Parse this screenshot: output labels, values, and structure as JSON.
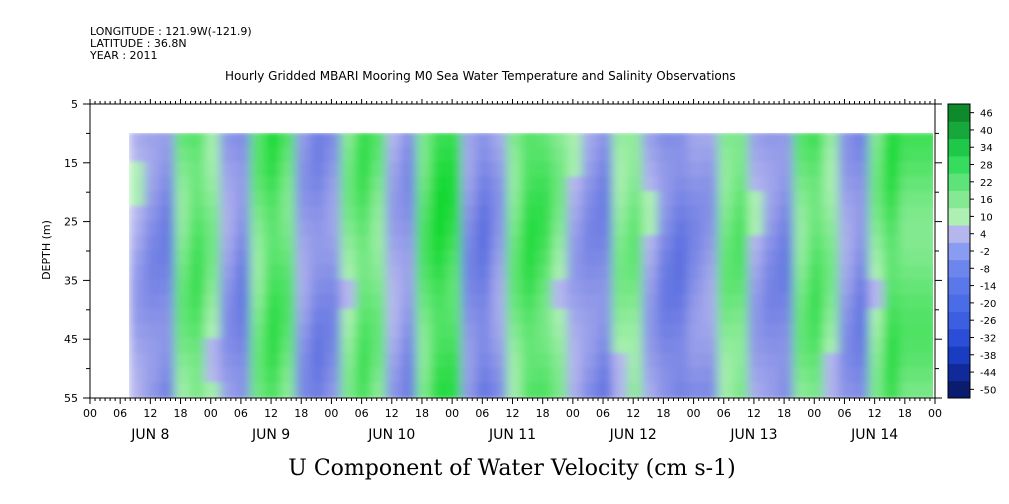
{
  "header": {
    "longitude": "LONGITUDE : 121.9W(-121.9)",
    "latitude": "LATITUDE : 36.8N",
    "year": "YEAR : 2011",
    "title": "Hourly Gridded MBARI Mooring M0 Sea Water Temperature and Salinity Observations"
  },
  "colors": {
    "background_missing": "#ffffff",
    "zero_pos": "#aef0b4",
    "zero_neg": "#b6b6ee",
    "strong_pos": "#0ed82e",
    "strong_neg": "#5a6ee0"
  },
  "chart_data": {
    "type": "heatmap",
    "title": "Hourly Gridded MBARI Mooring M0 Sea Water Temperature and Salinity Observations",
    "xlabel": "U Component of Water Velocity (cm s-1)",
    "ylabel": "DEPTH (m)",
    "ylim": [
      55,
      5
    ],
    "y_ticks": [
      5,
      15,
      25,
      35,
      45,
      55
    ],
    "hour_ticks": [
      "00",
      "06",
      "12",
      "18",
      "00",
      "06",
      "12",
      "18",
      "00",
      "06",
      "12",
      "18",
      "00",
      "06",
      "12",
      "18",
      "00",
      "06",
      "12",
      "18",
      "00",
      "06",
      "12",
      "18",
      "00",
      "06",
      "12",
      "18",
      "00"
    ],
    "day_labels": [
      "JUN  8",
      "JUN  9",
      "JUN 10",
      "JUN 11",
      "JUN 12",
      "JUN 13",
      "JUN 14"
    ],
    "data_start_hour": 8,
    "data_end_hour": 169,
    "data_depth_range": [
      10,
      55
    ],
    "colorbar": {
      "levels": [
        -50,
        -44,
        -38,
        -32,
        -26,
        -20,
        -14,
        -8,
        -2,
        4,
        10,
        16,
        22,
        28,
        34,
        40,
        46
      ],
      "labels": [
        "46",
        "40",
        "34",
        "28",
        "22",
        "16",
        "10",
        "4",
        "-2",
        "-8",
        "-14",
        "-20",
        "-26",
        "-32",
        "-38",
        "-44",
        "-50"
      ]
    },
    "column_means_cm_s": [
      -2,
      -6,
      -8,
      6,
      10,
      4,
      -4,
      -8,
      6,
      12,
      8,
      -4,
      -8,
      -6,
      4,
      10,
      6,
      -2,
      -6,
      8,
      14,
      12,
      -6,
      -10,
      -4,
      6,
      12,
      10,
      4,
      -2,
      -6,
      -8,
      4,
      6,
      -2,
      -8,
      -10,
      -6,
      -4,
      6,
      8,
      -2,
      -6,
      -8,
      6,
      10,
      4,
      -4,
      -8,
      4,
      12,
      8
    ],
    "column_hours": [
      8,
      11,
      14,
      17,
      20,
      23,
      26,
      29,
      32,
      35,
      38,
      41,
      44,
      47,
      50,
      53,
      56,
      59,
      62,
      65,
      68,
      71,
      74,
      77,
      80,
      83,
      86,
      89,
      92,
      95,
      98,
      101,
      104,
      107,
      110,
      113,
      116,
      119,
      122,
      125,
      128,
      131,
      134,
      137,
      140,
      143,
      146,
      149,
      152,
      155,
      158,
      161
    ]
  }
}
